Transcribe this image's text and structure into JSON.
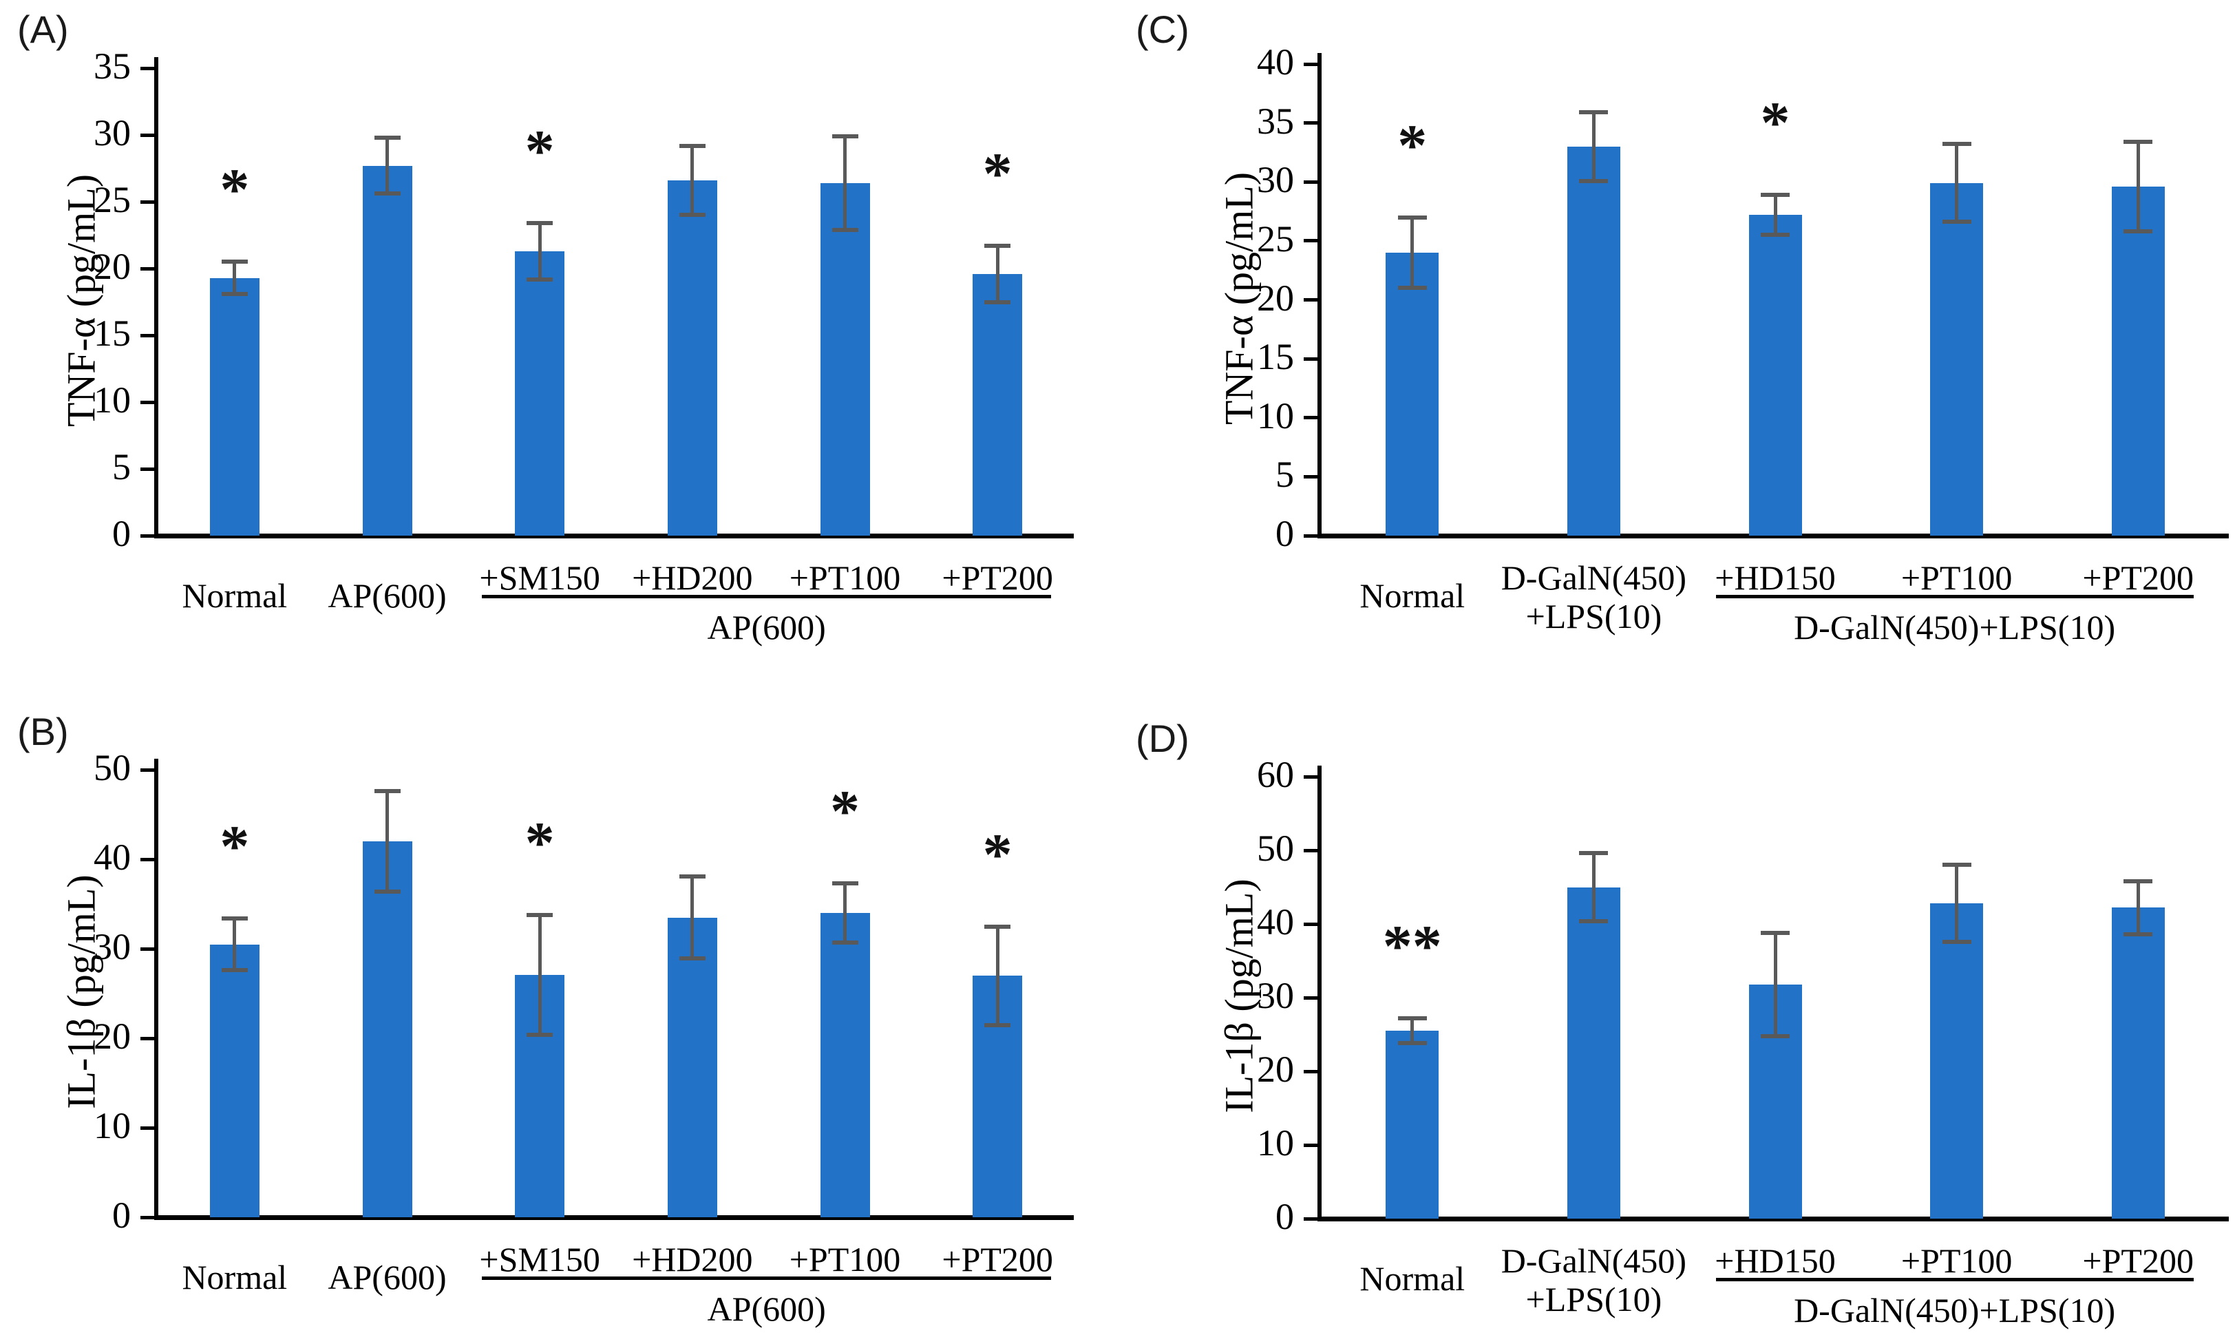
{
  "figure": {
    "background": "#ffffff",
    "bar_color": "#2272c8",
    "error_bar_color": "#595959",
    "axis_color": "#000000",
    "text_color": "#000000"
  },
  "chart_data": [
    {
      "type": "bar",
      "panel_label": "(A)",
      "ylabel": "TNF-α (pg/mL)",
      "ylim": [
        0,
        35
      ],
      "ytick_step": 5,
      "grid": false,
      "categories": [
        "Normal",
        "AP(600)",
        "+SM150",
        "+HD200",
        "+PT100",
        "+PT200"
      ],
      "values": [
        19.3,
        27.7,
        21.3,
        26.6,
        26.4,
        19.6
      ],
      "errors": [
        1.2,
        2.1,
        2.1,
        2.6,
        3.5,
        2.1
      ],
      "significance": [
        "*",
        "",
        "*",
        "",
        "",
        "*"
      ],
      "group_bracket": {
        "from_index": 2,
        "to_index": 5,
        "label": "AP(600)"
      }
    },
    {
      "type": "bar",
      "panel_label": "(B)",
      "ylabel": "IL-1β (pg/mL)",
      "ylim": [
        0,
        50
      ],
      "ytick_step": 10,
      "grid": false,
      "categories": [
        "Normal",
        "AP(600)",
        "+SM150",
        "+HD200",
        "+PT100",
        "+PT200"
      ],
      "values": [
        30.5,
        42.0,
        27.1,
        33.5,
        34.0,
        27.0
      ],
      "errors": [
        2.9,
        5.6,
        6.7,
        4.6,
        3.3,
        5.5
      ],
      "significance": [
        "*",
        "",
        "*",
        "",
        "*",
        "*"
      ],
      "group_bracket": {
        "from_index": 2,
        "to_index": 5,
        "label": "AP(600)"
      }
    },
    {
      "type": "bar",
      "panel_label": "(C)",
      "ylabel": "TNF-α (pg/mL)",
      "ylim": [
        0,
        40
      ],
      "ytick_step": 5,
      "grid": false,
      "categories": [
        "Normal",
        "D-GalN(450)\n+LPS(10)",
        "+HD150",
        "+PT100",
        "+PT200"
      ],
      "values": [
        24.0,
        33.0,
        27.2,
        29.9,
        29.6
      ],
      "errors": [
        3.0,
        2.9,
        1.7,
        3.3,
        3.8
      ],
      "significance": [
        "*",
        "",
        "*",
        "",
        ""
      ],
      "group_bracket": {
        "from_index": 2,
        "to_index": 4,
        "label": "D-GalN(450)+LPS(10)"
      }
    },
    {
      "type": "bar",
      "panel_label": "(D)",
      "ylabel": "IL-1β (pg/mL)",
      "ylim": [
        0,
        60
      ],
      "ytick_step": 10,
      "grid": false,
      "categories": [
        "Normal",
        "D-GalN(450)\n+LPS(10)",
        "+HD150",
        "+PT100",
        "+PT200"
      ],
      "values": [
        25.5,
        45.0,
        31.8,
        42.8,
        42.2
      ],
      "errors": [
        1.7,
        4.6,
        7.0,
        5.2,
        3.6
      ],
      "significance": [
        "**",
        "",
        "",
        "",
        ""
      ],
      "group_bracket": {
        "from_index": 2,
        "to_index": 4,
        "label": "D-GalN(450)+LPS(10)"
      }
    }
  ]
}
